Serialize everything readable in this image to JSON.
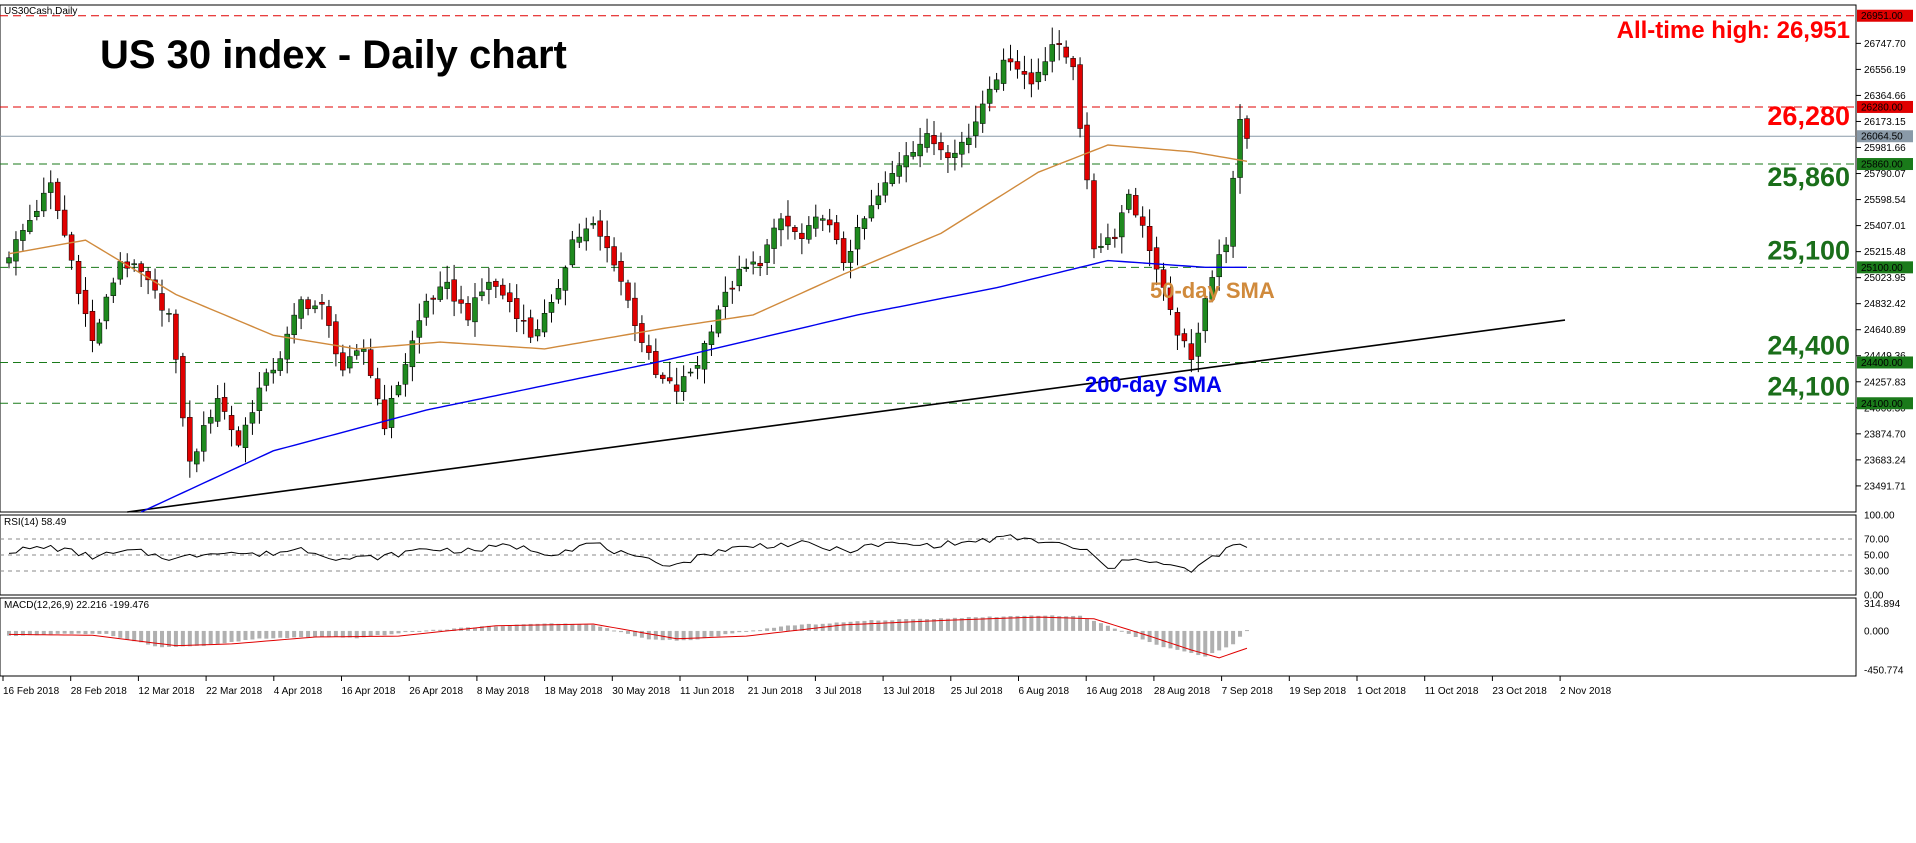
{
  "window_label": "US30Cash,Daily",
  "colors": {
    "bull": "#1f8a1f",
    "bear": "#e00000",
    "wick": "#000000",
    "sma50": "#d08a3c",
    "sma200": "#0000ee",
    "trend": "#000000",
    "resistance": "#e00000",
    "support": "#1a7a1a",
    "annot_red": "#ff0000",
    "annot_green": "#1a6e1a",
    "current": "#8a9aa8",
    "macd_hist": "#b0b0b0",
    "macd_signal": "#e00000"
  },
  "chart_data": [
    {
      "type": "candlestick",
      "title": "US 30 index - Daily chart",
      "ylim": [
        23300,
        27030
      ],
      "y_ticks": [
        "26747.70",
        "26556.19",
        "26364.66",
        "26173.15",
        "25981.66",
        "25790.07",
        "25598.54",
        "25407.01",
        "25215.48",
        "25023.95",
        "24832.42",
        "24640.89",
        "24449.36",
        "24257.83",
        "24066.30",
        "23874.70",
        "23683.24",
        "23491.71"
      ],
      "x_ticks": [
        "16 Feb 2018",
        "28 Feb 2018",
        "12 Mar 2018",
        "22 Mar 2018",
        "4 Apr 2018",
        "16 Apr 2018",
        "26 Apr 2018",
        "8 May 2018",
        "18 May 2018",
        "30 May 2018",
        "11 Jun 2018",
        "21 Jun 2018",
        "3 Jul 2018",
        "13 Jul 2018",
        "25 Jul 2018",
        "6 Aug 2018",
        "16 Aug 2018",
        "28 Aug 2018",
        "7 Sep 2018",
        "19 Sep 2018",
        "1 Oct 2018",
        "11 Oct 2018",
        "23 Oct 2018",
        "2 Nov 2018"
      ],
      "key_levels": [
        {
          "value": 26951,
          "tag": "26951.00",
          "style": "resistance",
          "annotation": "All-time high: 26,951"
        },
        {
          "value": 26280,
          "tag": "26280.00",
          "style": "resistance",
          "annotation": "26,280"
        },
        {
          "value": 25860,
          "tag": "25860.00",
          "style": "support",
          "annotation": "25,860"
        },
        {
          "value": 25100,
          "tag": "25100.00",
          "style": "support",
          "annotation": "25,100"
        },
        {
          "value": 24400,
          "tag": "24400.00",
          "style": "support",
          "annotation": "24,400"
        },
        {
          "value": 24100,
          "tag": "24100.00",
          "style": "support",
          "annotation": "24,100"
        }
      ],
      "current_price": {
        "value": 26064.5,
        "tag": "26064.50"
      },
      "sma_labels": {
        "sma50": "50-day SMA",
        "sma200": "200-day SMA"
      },
      "close_anchors": [
        [
          0,
          25200
        ],
        [
          6,
          25700
        ],
        [
          9,
          25150
        ],
        [
          12,
          24550
        ],
        [
          16,
          25150
        ],
        [
          19,
          25050
        ],
        [
          23,
          24750
        ],
        [
          26,
          23650
        ],
        [
          30,
          24150
        ],
        [
          33,
          23800
        ],
        [
          36,
          24200
        ],
        [
          39,
          24450
        ],
        [
          42,
          24850
        ],
        [
          45,
          24800
        ],
        [
          48,
          24350
        ],
        [
          51,
          24500
        ],
        [
          54,
          23950
        ],
        [
          57,
          24400
        ],
        [
          60,
          24850
        ],
        [
          63,
          24950
        ],
        [
          66,
          24750
        ],
        [
          69,
          25000
        ],
        [
          72,
          24850
        ],
        [
          75,
          24600
        ],
        [
          78,
          24800
        ],
        [
          81,
          25300
        ],
        [
          84,
          25400
        ],
        [
          87,
          25150
        ],
        [
          90,
          24700
        ],
        [
          93,
          24300
        ],
        [
          96,
          24200
        ],
        [
          99,
          24400
        ],
        [
          102,
          24800
        ],
        [
          105,
          25050
        ],
        [
          108,
          25150
        ],
        [
          111,
          25450
        ],
        [
          114,
          25300
        ],
        [
          117,
          25500
        ],
        [
          120,
          25150
        ],
        [
          123,
          25450
        ],
        [
          126,
          25700
        ],
        [
          129,
          25950
        ],
        [
          132,
          26050
        ],
        [
          135,
          25950
        ],
        [
          138,
          26050
        ],
        [
          141,
          26450
        ],
        [
          144,
          26650
        ],
        [
          147,
          26450
        ],
        [
          150,
          26750
        ],
        [
          153,
          26600
        ],
        [
          156,
          25250
        ],
        [
          159,
          25350
        ],
        [
          161,
          25650
        ],
        [
          164,
          25250
        ],
        [
          167,
          24750
        ],
        [
          170,
          24400
        ],
        [
          172,
          24900
        ],
        [
          175,
          25300
        ],
        [
          177,
          26150
        ],
        [
          178,
          26064
        ]
      ],
      "sma50": [
        [
          0,
          25200
        ],
        [
          11,
          25300
        ],
        [
          24,
          24900
        ],
        [
          38,
          24600
        ],
        [
          50,
          24500
        ],
        [
          62,
          24550
        ],
        [
          77,
          24500
        ],
        [
          94,
          24650
        ],
        [
          107,
          24750
        ],
        [
          120,
          25050
        ],
        [
          134,
          25350
        ],
        [
          148,
          25800
        ],
        [
          158,
          26000
        ],
        [
          170,
          25950
        ],
        [
          178,
          25880
        ]
      ],
      "sma200": [
        [
          19,
          23300
        ],
        [
          38,
          23750
        ],
        [
          60,
          24050
        ],
        [
          93,
          24400
        ],
        [
          122,
          24750
        ],
        [
          142,
          24950
        ],
        [
          158,
          25150
        ],
        [
          172,
          25100
        ],
        [
          178,
          25100
        ]
      ],
      "trendline": [
        [
          17,
          23300
        ],
        [
          178,
          24400
        ]
      ]
    },
    {
      "type": "line",
      "title": "RSI(14) 58.49",
      "ylim": [
        0,
        100
      ],
      "y_ticks": [
        "100.00",
        "70.00",
        "50.00",
        "30.00",
        "0.00"
      ],
      "levels": [
        70,
        50,
        30
      ],
      "anchors": [
        [
          0,
          55
        ],
        [
          6,
          60
        ],
        [
          12,
          48
        ],
        [
          18,
          55
        ],
        [
          24,
          45
        ],
        [
          30,
          55
        ],
        [
          36,
          50
        ],
        [
          42,
          58
        ],
        [
          48,
          45
        ],
        [
          54,
          48
        ],
        [
          60,
          58
        ],
        [
          66,
          55
        ],
        [
          72,
          62
        ],
        [
          78,
          52
        ],
        [
          84,
          65
        ],
        [
          90,
          45
        ],
        [
          96,
          38
        ],
        [
          102,
          56
        ],
        [
          108,
          62
        ],
        [
          114,
          64
        ],
        [
          120,
          55
        ],
        [
          126,
          64
        ],
        [
          132,
          62
        ],
        [
          138,
          66
        ],
        [
          144,
          72
        ],
        [
          150,
          65
        ],
        [
          155,
          55
        ],
        [
          158,
          32
        ],
        [
          162,
          48
        ],
        [
          166,
          38
        ],
        [
          170,
          30
        ],
        [
          174,
          52
        ],
        [
          177,
          64
        ],
        [
          178,
          58
        ]
      ]
    },
    {
      "type": "bar",
      "title": "MACD(12,26,9) 22.216 -199.476",
      "ylim": [
        -520,
        380
      ],
      "y_ticks": [
        "314.894",
        "0.000",
        "-450.774"
      ],
      "hist_anchors": [
        [
          0,
          -60
        ],
        [
          8,
          -30
        ],
        [
          14,
          -40
        ],
        [
          22,
          -190
        ],
        [
          28,
          -170
        ],
        [
          36,
          -90
        ],
        [
          44,
          -70
        ],
        [
          50,
          -80
        ],
        [
          58,
          -10
        ],
        [
          66,
          40
        ],
        [
          78,
          90
        ],
        [
          84,
          70
        ],
        [
          92,
          -100
        ],
        [
          98,
          -110
        ],
        [
          104,
          -30
        ],
        [
          112,
          60
        ],
        [
          124,
          120
        ],
        [
          136,
          150
        ],
        [
          148,
          180
        ],
        [
          154,
          170
        ],
        [
          158,
          60
        ],
        [
          166,
          -190
        ],
        [
          172,
          -290
        ],
        [
          176,
          -150
        ],
        [
          178,
          10
        ]
      ],
      "signal_anchors": [
        [
          0,
          -40
        ],
        [
          12,
          -50
        ],
        [
          24,
          -170
        ],
        [
          32,
          -150
        ],
        [
          44,
          -70
        ],
        [
          56,
          -60
        ],
        [
          70,
          60
        ],
        [
          84,
          80
        ],
        [
          96,
          -90
        ],
        [
          106,
          -60
        ],
        [
          120,
          70
        ],
        [
          134,
          120
        ],
        [
          148,
          160
        ],
        [
          156,
          140
        ],
        [
          164,
          -60
        ],
        [
          170,
          -220
        ],
        [
          174,
          -310
        ],
        [
          178,
          -200
        ]
      ]
    }
  ]
}
